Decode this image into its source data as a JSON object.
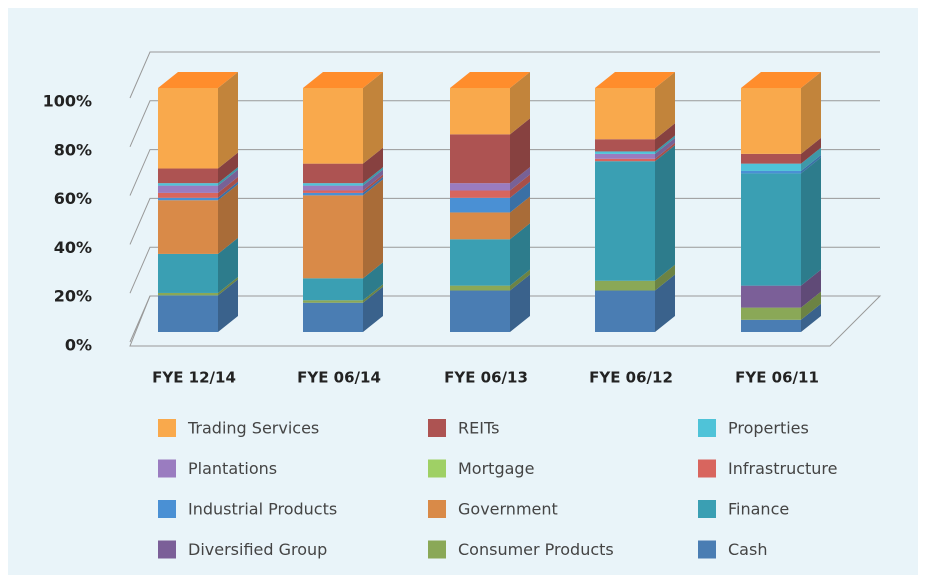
{
  "chart_data": {
    "type": "bar3d_stacked",
    "categories": [
      "FYE 12/14",
      "FYE 06/14",
      "FYE 06/13",
      "FYE 06/12",
      "FYE 06/11"
    ],
    "series": [
      {
        "name": "Cash",
        "color": "#4a7db3",
        "values": [
          15,
          12,
          17,
          17,
          5
        ]
      },
      {
        "name": "Consumer Products",
        "color": "#8aa857",
        "values": [
          1,
          1,
          2,
          4,
          5
        ]
      },
      {
        "name": "Diversified Group",
        "color": "#7b5f98",
        "values": [
          0,
          0,
          0,
          0,
          9
        ]
      },
      {
        "name": "Finance",
        "color": "#3a9fb3",
        "values": [
          16,
          9,
          19,
          49,
          46
        ]
      },
      {
        "name": "Government",
        "color": "#d98a48",
        "values": [
          22,
          34,
          11,
          0,
          0
        ]
      },
      {
        "name": "Industrial Products",
        "color": "#4a90d4",
        "values": [
          1,
          1,
          6,
          0,
          1
        ]
      },
      {
        "name": "Infrastructure",
        "color": "#d8655e",
        "values": [
          2,
          1,
          3,
          1,
          0
        ]
      },
      {
        "name": "Mortgage",
        "color": "#9fd065",
        "values": [
          0,
          0,
          0,
          0,
          0
        ]
      },
      {
        "name": "Plantations",
        "color": "#9a7cc0",
        "values": [
          3,
          2,
          3,
          2,
          0
        ]
      },
      {
        "name": "Properties",
        "color": "#4fc3d8",
        "values": [
          1,
          1,
          0,
          1,
          3
        ]
      },
      {
        "name": "REITs",
        "color": "#ad5352",
        "values": [
          6,
          8,
          20,
          5,
          4
        ]
      },
      {
        "name": "Trading Services",
        "color": "#f9a94c",
        "values": [
          33,
          31,
          19,
          21,
          27
        ]
      }
    ],
    "ylim": [
      0,
      100
    ],
    "yticks": [
      {
        "value": 0,
        "label": "0%"
      },
      {
        "value": 20,
        "label": "20%"
      },
      {
        "value": 40,
        "label": "40%"
      },
      {
        "value": 60,
        "label": "60%"
      },
      {
        "value": 80,
        "label": "80%"
      },
      {
        "value": 100,
        "label": "100%"
      }
    ],
    "grid": true
  }
}
